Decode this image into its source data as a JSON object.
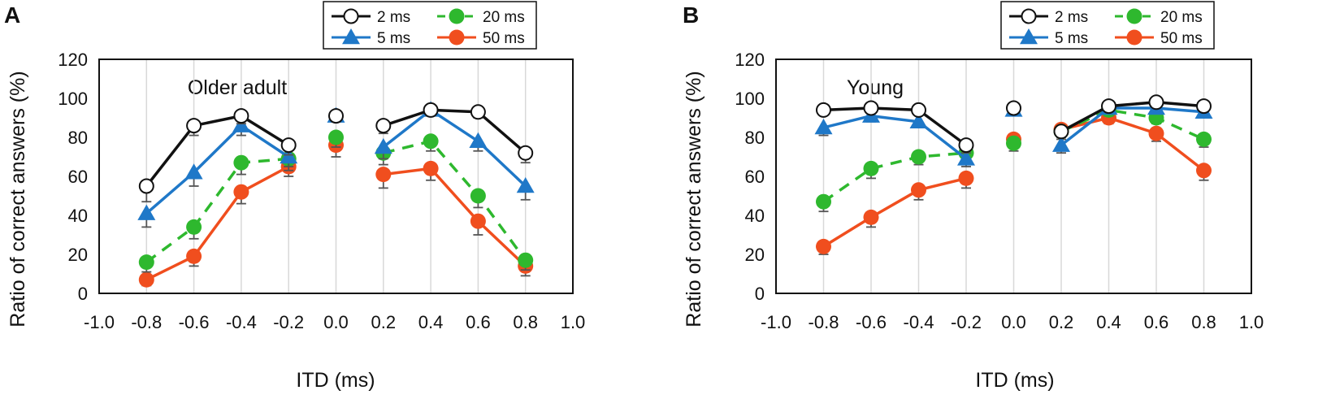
{
  "figure": {
    "legend_labels": [
      "2 ms",
      "20 ms",
      "5 ms",
      "50 ms"
    ],
    "colors": {
      "2ms": "#111111",
      "5ms": "#1f78c8",
      "20ms": "#2eb82e",
      "50ms": "#f04e1e",
      "error": "#555555",
      "frame": "#111111",
      "grid": "#d8d8d8"
    }
  },
  "chart_data": [
    {
      "type": "line",
      "panel_label": "A",
      "title": "Older adult",
      "xlabel": "ITD (ms)",
      "ylabel": "Ratio of correct answers (%)",
      "xlim": [
        -1.0,
        1.0
      ],
      "ylim": [
        0,
        120
      ],
      "xticks": [
        "-1.0",
        "-0.8",
        "-0.6",
        "-0.4",
        "-0.2",
        "0.0",
        "0.2",
        "0.4",
        "0.6",
        "0.8",
        "1.0"
      ],
      "yticks": [
        "0",
        "20",
        "40",
        "60",
        "80",
        "100",
        "120"
      ],
      "grid": "vertical",
      "legend_position": "top",
      "x": [
        -0.8,
        -0.6,
        -0.4,
        -0.2,
        0.0,
        0.2,
        0.4,
        0.6,
        0.8
      ],
      "series": [
        {
          "name": "2 ms",
          "values": [
            55,
            86,
            91,
            76,
            91,
            86,
            94,
            93,
            72
          ],
          "errors": [
            8,
            5,
            4,
            5,
            3,
            4,
            3,
            3,
            5
          ]
        },
        {
          "name": "5 ms",
          "values": [
            41,
            62,
            86,
            70,
            91,
            75,
            94,
            78,
            55
          ],
          "errors": [
            7,
            7,
            5,
            5,
            3,
            6,
            3,
            5,
            7
          ]
        },
        {
          "name": "20 ms",
          "values": [
            16,
            34,
            67,
            69,
            80,
            72,
            78,
            50,
            17
          ],
          "errors": [
            5,
            6,
            6,
            6,
            5,
            6,
            5,
            6,
            5
          ]
        },
        {
          "name": "50 ms",
          "values": [
            7,
            19,
            52,
            65,
            76,
            61,
            64,
            37,
            14
          ],
          "errors": [
            3,
            5,
            6,
            5,
            6,
            7,
            6,
            7,
            5
          ]
        }
      ]
    },
    {
      "type": "line",
      "panel_label": "B",
      "title": "Young",
      "xlabel": "ITD (ms)",
      "ylabel": "Ratio of correct answers (%)",
      "xlim": [
        -1.0,
        1.0
      ],
      "ylim": [
        0,
        120
      ],
      "xticks": [
        "-1.0",
        "-0.8",
        "-0.6",
        "-0.4",
        "-0.2",
        "0.0",
        "0.2",
        "0.4",
        "0.6",
        "0.8",
        "1.0"
      ],
      "yticks": [
        "0",
        "20",
        "40",
        "60",
        "80",
        "100",
        "120"
      ],
      "grid": "vertical",
      "legend_position": "top",
      "x": [
        -0.8,
        -0.6,
        -0.4,
        -0.2,
        0.0,
        0.2,
        0.4,
        0.6,
        0.8
      ],
      "series": [
        {
          "name": "2 ms",
          "values": [
            94,
            95,
            94,
            76,
            95,
            83,
            96,
            98,
            96
          ],
          "errors": [
            2,
            2,
            2,
            4,
            2,
            3,
            2,
            2,
            2
          ]
        },
        {
          "name": "5 ms",
          "values": [
            85,
            91,
            88,
            69,
            94,
            76,
            95,
            95,
            93
          ],
          "errors": [
            4,
            3,
            3,
            4,
            2,
            4,
            2,
            2,
            3
          ]
        },
        {
          "name": "20 ms",
          "values": [
            47,
            64,
            70,
            72,
            77,
            83,
            94,
            90,
            79
          ],
          "errors": [
            5,
            5,
            4,
            4,
            4,
            4,
            3,
            3,
            4
          ]
        },
        {
          "name": "50 ms",
          "values": [
            24,
            39,
            53,
            59,
            79,
            84,
            90,
            82,
            63
          ],
          "errors": [
            4,
            5,
            5,
            5,
            4,
            3,
            3,
            4,
            5
          ]
        }
      ]
    }
  ]
}
